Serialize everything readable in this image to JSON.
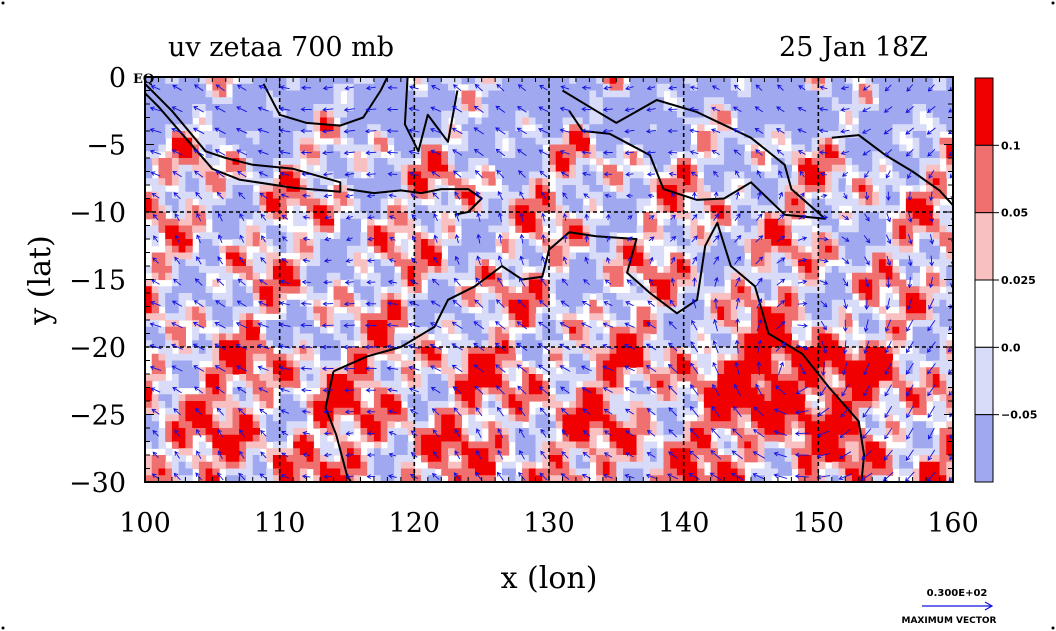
{
  "chart_data": {
    "type": "heatmap",
    "title": "uv zetaa 700 mb",
    "subtitle": "25 Jan 18Z",
    "xlabel": "x (lon)",
    "ylabel": "y (lat)",
    "xlim": [
      100,
      160
    ],
    "ylim": [
      -30,
      0
    ],
    "x_ticks": [
      100,
      110,
      120,
      130,
      140,
      150,
      160
    ],
    "x_tick_labels": [
      "100",
      "110",
      "120",
      "130",
      "140",
      "150",
      "160"
    ],
    "y_ticks": [
      0,
      -5,
      -10,
      -15,
      -20,
      -25,
      -30
    ],
    "y_tick_labels": [
      "0",
      "−5",
      "−10",
      "−15",
      "−20",
      "−25",
      "−30"
    ],
    "y_top_suffix": "EQ",
    "grid_lon": [
      110,
      120,
      130,
      140,
      150
    ],
    "grid_lat": [
      -10,
      -20
    ],
    "grid": true,
    "colorbar": {
      "placement": "right",
      "levels": [
        "0.1",
        "0.05",
        "0.025",
        "0.0",
        "−0.05"
      ],
      "colors": [
        "#f00000",
        "#f07070",
        "#f8c0c0",
        "#ffffff",
        "#d8dcf8",
        "#a0a8f0"
      ]
    },
    "vector_legend": {
      "value": "0.300E+02",
      "label": "MAXIMUM VECTOR"
    },
    "colors": {
      "strong_positive": "#f00000",
      "positive": "#f07070",
      "weak_positive": "#f8c0c0",
      "neutral": "#ffffff",
      "weak_negative": "#d8dcf8",
      "negative": "#a0a8f0",
      "vectors": "#1010e0",
      "coast": "#000000"
    }
  }
}
